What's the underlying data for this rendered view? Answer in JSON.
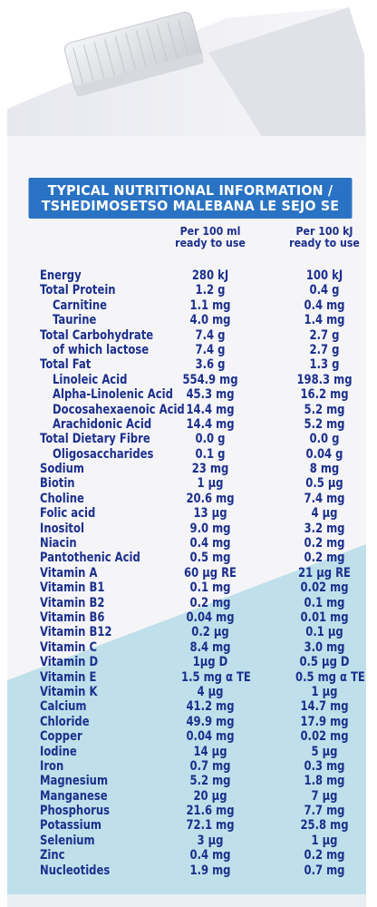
{
  "colors": {
    "text": "#1b2f8c",
    "banner": "#2a73c4",
    "carton_white": "#f5f5f8",
    "carton_blue": "#bfe0ea",
    "cap": "#e4e6ea"
  },
  "header": {
    "line1": "TYPICAL NUTRITIONAL INFORMATION /",
    "line2": "TSHEDIMOSETSO MALEBANA LE SEJO SE"
  },
  "columns": {
    "per_100ml": "Per 100 ml ready to use",
    "per_100kj": "Per 100 kJ ready to use"
  },
  "rows": [
    {
      "label": "Energy",
      "v1": "280 kJ",
      "v2": "100 kJ",
      "indent": false
    },
    {
      "label": "Total Protein",
      "v1": "1.2 g",
      "v2": "0.4 g",
      "indent": false
    },
    {
      "label": "Carnitine",
      "v1": "1.1 mg",
      "v2": "0.4 mg",
      "indent": true
    },
    {
      "label": "Taurine",
      "v1": "4.0 mg",
      "v2": "1.4 mg",
      "indent": true
    },
    {
      "label": "Total Carbohydrate",
      "v1": "7.4 g",
      "v2": "2.7 g",
      "indent": false
    },
    {
      "label": "of which lactose",
      "v1": "7.4 g",
      "v2": "2.7 g",
      "indent": true
    },
    {
      "label": "Total Fat",
      "v1": "3.6 g",
      "v2": "1.3 g",
      "indent": false
    },
    {
      "label": "Linoleic Acid",
      "v1": "554.9 mg",
      "v2": "198.3 mg",
      "indent": true
    },
    {
      "label": "Alpha-Linolenic Acid",
      "v1": "45.3 mg",
      "v2": "16.2 mg",
      "indent": true
    },
    {
      "label": "Docosahexaenoic Acid",
      "v1": "14.4 mg",
      "v2": "5.2 mg",
      "indent": true
    },
    {
      "label": "Arachidonic Acid",
      "v1": "14.4 mg",
      "v2": "5.2 mg",
      "indent": true
    },
    {
      "label": "Total Dietary Fibre",
      "v1": "0.0 g",
      "v2": "0.0 g",
      "indent": false
    },
    {
      "label": "Oligosaccharides",
      "v1": "0.1 g",
      "v2": "0.04 g",
      "indent": true
    },
    {
      "label": "Sodium",
      "v1": "23 mg",
      "v2": "8 mg",
      "indent": false
    },
    {
      "label": "Biotin",
      "v1": "1 µg",
      "v2": "0.5 µg",
      "indent": false
    },
    {
      "label": "Choline",
      "v1": "20.6 mg",
      "v2": "7.4 mg",
      "indent": false
    },
    {
      "label": "Folic acid",
      "v1": "13 µg",
      "v2": "4 µg",
      "indent": false
    },
    {
      "label": "Inositol",
      "v1": "9.0 mg",
      "v2": "3.2 mg",
      "indent": false
    },
    {
      "label": "Niacin",
      "v1": "0.4 mg",
      "v2": "0.2 mg",
      "indent": false
    },
    {
      "label": "Pantothenic Acid",
      "v1": "0.5 mg",
      "v2": "0.2 mg",
      "indent": false
    },
    {
      "label": "Vitamin A",
      "v1": "60 µg RE",
      "v2": "21 µg RE",
      "indent": false
    },
    {
      "label": "Vitamin B1",
      "v1": "0.1 mg",
      "v2": "0.02 mg",
      "indent": false
    },
    {
      "label": "Vitamin B2",
      "v1": "0.2 mg",
      "v2": "0.1 mg",
      "indent": false
    },
    {
      "label": "Vitamin B6",
      "v1": "0.04 mg",
      "v2": "0.01 mg",
      "indent": false
    },
    {
      "label": "Vitamin B12",
      "v1": "0.2 µg",
      "v2": "0.1 µg",
      "indent": false
    },
    {
      "label": "Vitamin C",
      "v1": "8.4 mg",
      "v2": "3.0 mg",
      "indent": false
    },
    {
      "label": "Vitamin D",
      "v1": "1µg D",
      "v2": "0.5 µg D",
      "indent": false
    },
    {
      "label": "Vitamin E",
      "v1": "1.5 mg α TE",
      "v2": "0.5 mg α TE",
      "indent": false
    },
    {
      "label": "Vitamin K",
      "v1": "4 µg",
      "v2": "1 µg",
      "indent": false
    },
    {
      "label": "Calcium",
      "v1": "41.2 mg",
      "v2": "14.7 mg",
      "indent": false
    },
    {
      "label": "Chloride",
      "v1": "49.9 mg",
      "v2": "17.9 mg",
      "indent": false
    },
    {
      "label": "Copper",
      "v1": "0.04 mg",
      "v2": "0.02 mg",
      "indent": false
    },
    {
      "label": "Iodine",
      "v1": "14 µg",
      "v2": "5 µg",
      "indent": false
    },
    {
      "label": "Iron",
      "v1": "0.7 mg",
      "v2": "0.3 mg",
      "indent": false
    },
    {
      "label": "Magnesium",
      "v1": "5.2 mg",
      "v2": "1.8 mg",
      "indent": false
    },
    {
      "label": "Manganese",
      "v1": "20 µg",
      "v2": "7 µg",
      "indent": false
    },
    {
      "label": "Phosphorus",
      "v1": "21.6 mg",
      "v2": "7.7 mg",
      "indent": false
    },
    {
      "label": "Potassium",
      "v1": "72.1 mg",
      "v2": "25.8 mg",
      "indent": false
    },
    {
      "label": "Selenium",
      "v1": "3 µg",
      "v2": "1 µg",
      "indent": false
    },
    {
      "label": "Zinc",
      "v1": "0.4 mg",
      "v2": "0.2 mg",
      "indent": false
    },
    {
      "label": "Nucleotides",
      "v1": "1.9 mg",
      "v2": "0.7 mg",
      "indent": false
    }
  ]
}
